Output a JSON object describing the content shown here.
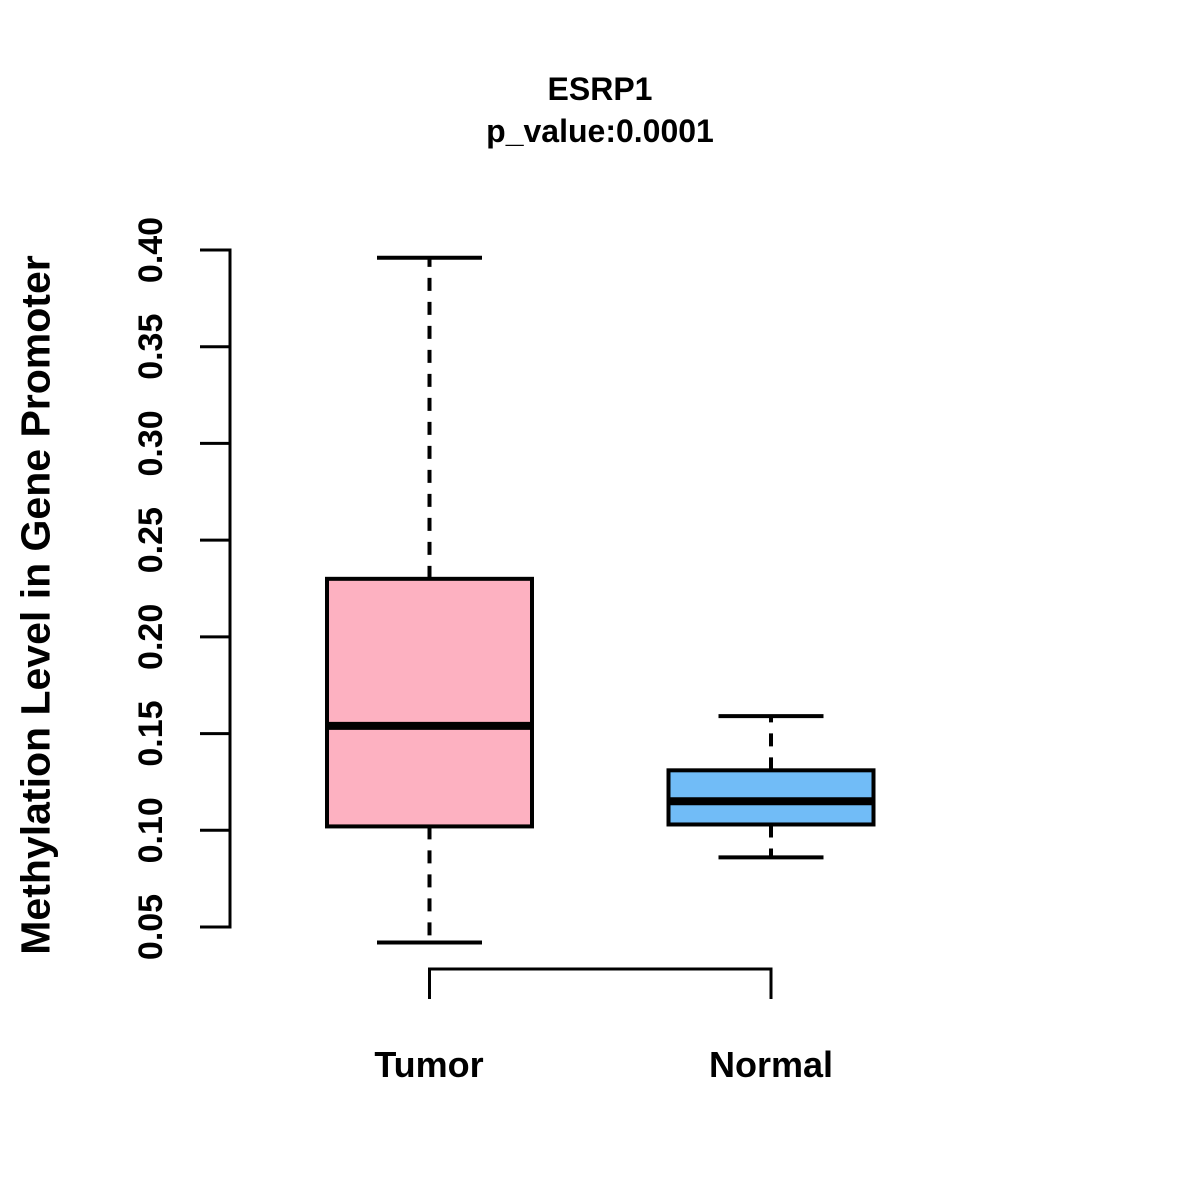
{
  "title": "ESRP1",
  "subtitle": "p_value:0.0001",
  "chart_data": {
    "type": "boxplot",
    "title": "ESRP1",
    "subtitle": "p_value:0.0001",
    "ylabel": "Methylation Level in Gene Promoter",
    "xlabel": "",
    "ylim": [
      0.05,
      0.4
    ],
    "yticks": [
      0.05,
      0.1,
      0.15,
      0.2,
      0.25,
      0.3,
      0.35,
      0.4
    ],
    "ytick_labels": [
      "0.05",
      "0.10",
      "0.15",
      "0.20",
      "0.25",
      "0.30",
      "0.35",
      "0.40"
    ],
    "grid": false,
    "legend": "none",
    "whisker_style": "dashed",
    "categories": [
      "Tumor",
      "Normal"
    ],
    "groups": [
      {
        "label": "Tumor",
        "color": "#FDB1C1",
        "whisker_low": 0.042,
        "q1": 0.102,
        "median": 0.154,
        "q3": 0.23,
        "whisker_high": 0.396
      },
      {
        "label": "Normal",
        "color": "#71BCF7",
        "whisker_low": 0.086,
        "q1": 0.103,
        "median": 0.115,
        "q3": 0.131,
        "whisker_high": 0.159
      }
    ],
    "comparison_bracket": {
      "between": [
        "Tumor",
        "Normal"
      ]
    }
  },
  "colors": {
    "stroke": "#000000",
    "background": "#FFFFFF",
    "tumor_fill": "#FDB1C1",
    "normal_fill": "#71BCF7"
  }
}
